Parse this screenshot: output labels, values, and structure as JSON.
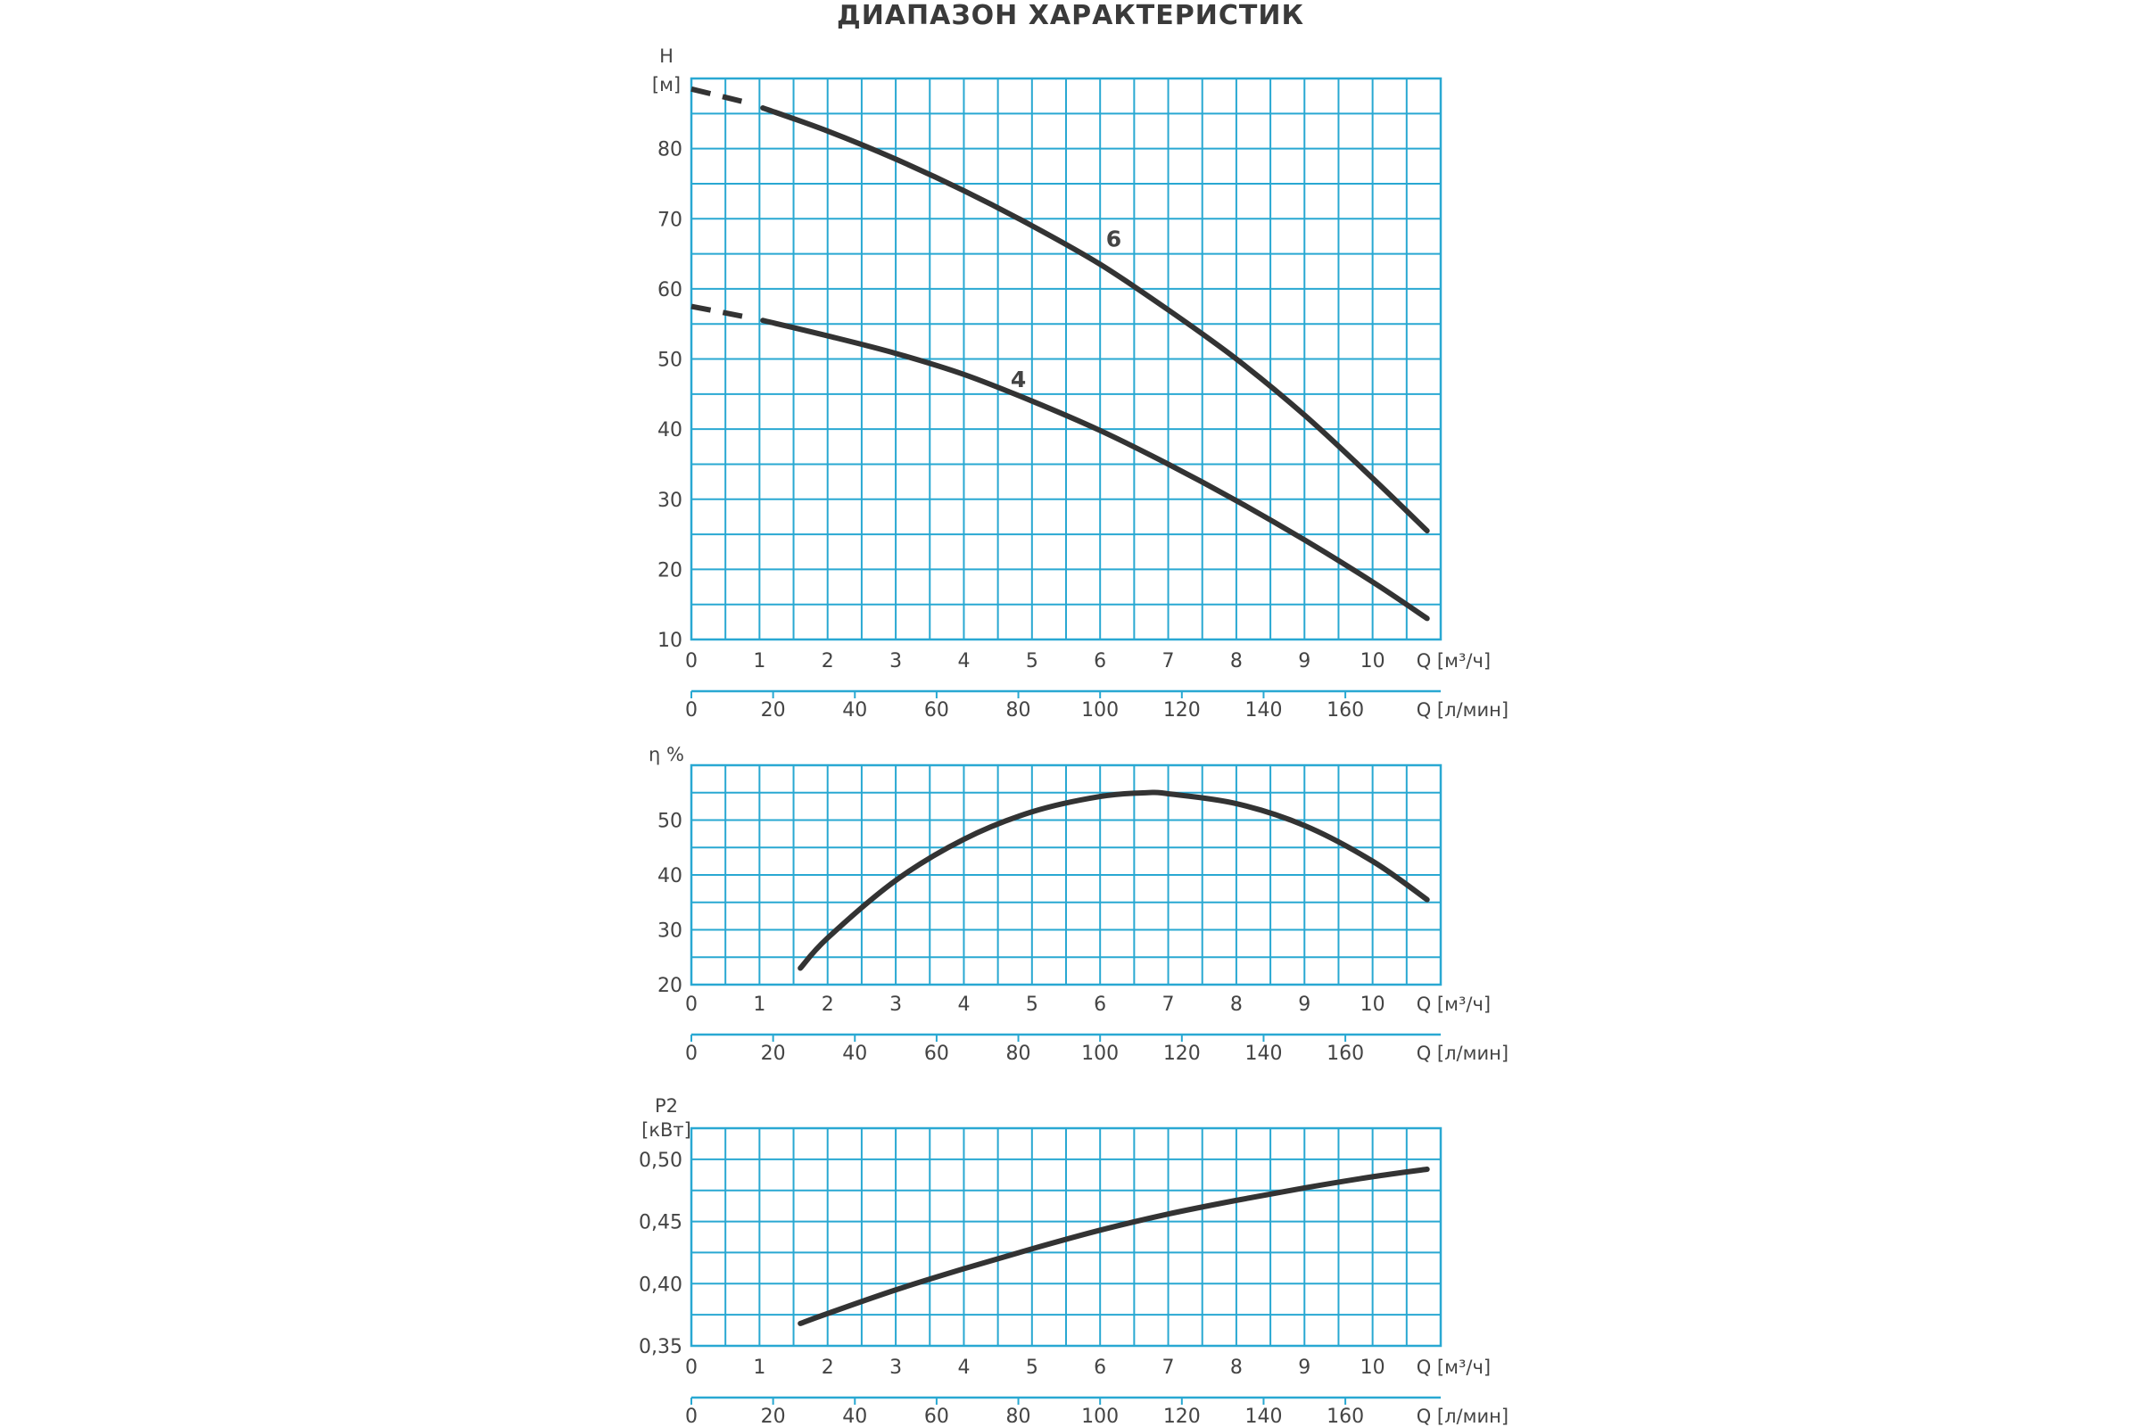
{
  "title": "ДИАПАЗОН ХАРАКТЕРИСТИК",
  "colors": {
    "grid": "#29a8d2",
    "curve": "#333333",
    "text": "#444444"
  },
  "chart_data": [
    {
      "type": "line",
      "ylabel_lines": [
        "H",
        "[м]"
      ],
      "y_ticks": [
        10,
        20,
        30,
        40,
        50,
        60,
        70,
        80
      ],
      "y_tick_labels": [
        "10",
        "20",
        "30",
        "40",
        "50",
        "60",
        "70",
        "80"
      ],
      "ylim": [
        10,
        90
      ],
      "xlim": [
        0,
        11
      ],
      "x_ticks": [
        0,
        1,
        2,
        3,
        4,
        5,
        6,
        7,
        8,
        9,
        10
      ],
      "x_tick_labels": [
        "0",
        "1",
        "2",
        "3",
        "4",
        "5",
        "6",
        "7",
        "8",
        "9",
        "10"
      ],
      "xlabel": "Q [м³/ч]",
      "x2_ticks": [
        0,
        20,
        40,
        60,
        80,
        100,
        120,
        140,
        160
      ],
      "x2_tick_labels": [
        "0",
        "20",
        "40",
        "60",
        "80",
        "100",
        "120",
        "140",
        "160"
      ],
      "x2label": "Q [л/мин]",
      "grid": true,
      "series": [
        {
          "name": "6",
          "label_at": [
            6.2,
            66
          ],
          "dashed": [
            [
              0,
              88.5
            ],
            [
              0.8,
              86.6
            ]
          ],
          "points": [
            [
              1.05,
              85.8
            ],
            [
              2,
              82.5
            ],
            [
              3,
              78.5
            ],
            [
              4,
              74
            ],
            [
              5,
              69
            ],
            [
              6,
              63.5
            ],
            [
              7,
              57
            ],
            [
              8,
              50
            ],
            [
              9,
              42
            ],
            [
              10,
              33
            ],
            [
              10.8,
              25.5
            ]
          ]
        },
        {
          "name": "4",
          "label_at": [
            4.8,
            46
          ],
          "dashed": [
            [
              0,
              57.5
            ],
            [
              0.8,
              56
            ]
          ],
          "points": [
            [
              1.05,
              55.5
            ],
            [
              2,
              53.3
            ],
            [
              3,
              50.8
            ],
            [
              4,
              47.8
            ],
            [
              5,
              44
            ],
            [
              6,
              39.8
            ],
            [
              7,
              35
            ],
            [
              8,
              29.8
            ],
            [
              9,
              24.2
            ],
            [
              10,
              18.2
            ],
            [
              10.8,
              13
            ]
          ]
        }
      ]
    },
    {
      "type": "line",
      "ylabel_lines": [
        "η %"
      ],
      "y_ticks": [
        20,
        30,
        40,
        50
      ],
      "y_tick_labels": [
        "20",
        "30",
        "40",
        "50"
      ],
      "ylim": [
        20,
        60
      ],
      "xlim": [
        0,
        11
      ],
      "x_ticks": [
        0,
        1,
        2,
        3,
        4,
        5,
        6,
        7,
        8,
        9,
        10
      ],
      "x_tick_labels": [
        "0",
        "1",
        "2",
        "3",
        "4",
        "5",
        "6",
        "7",
        "8",
        "9",
        "10"
      ],
      "xlabel": "Q [м³/ч]",
      "x2_ticks": [
        0,
        20,
        40,
        60,
        80,
        100,
        120,
        140,
        160
      ],
      "x2_tick_labels": [
        "0",
        "20",
        "40",
        "60",
        "80",
        "100",
        "120",
        "140",
        "160"
      ],
      "x2label": "Q [л/мин]",
      "grid": true,
      "series": [
        {
          "points": [
            [
              1.6,
              23
            ],
            [
              2,
              28.5
            ],
            [
              3,
              39
            ],
            [
              4,
              46.5
            ],
            [
              5,
              51.5
            ],
            [
              6,
              54.3
            ],
            [
              6.7,
              55
            ],
            [
              7,
              54.8
            ],
            [
              8,
              53
            ],
            [
              9,
              49
            ],
            [
              10,
              42.5
            ],
            [
              10.8,
              35.5
            ]
          ]
        }
      ]
    },
    {
      "type": "line",
      "ylabel_lines": [
        "P2",
        "[кВт]"
      ],
      "y_ticks": [
        0.35,
        0.4,
        0.45,
        0.5
      ],
      "y_tick_labels": [
        "0,35",
        "0,40",
        "0,45",
        "0,50"
      ],
      "ylim": [
        0.35,
        0.525
      ],
      "xlim": [
        0,
        11
      ],
      "x_ticks": [
        0,
        1,
        2,
        3,
        4,
        5,
        6,
        7,
        8,
        9,
        10
      ],
      "x_tick_labels": [
        "0",
        "1",
        "2",
        "3",
        "4",
        "5",
        "6",
        "7",
        "8",
        "9",
        "10"
      ],
      "xlabel": "Q [м³/ч]",
      "x2_ticks": [
        0,
        20,
        40,
        60,
        80,
        100,
        120,
        140,
        160
      ],
      "x2_tick_labels": [
        "0",
        "20",
        "40",
        "60",
        "80",
        "100",
        "120",
        "140",
        "160"
      ],
      "x2label": "Q [л/мин]",
      "grid": true,
      "series": [
        {
          "points": [
            [
              1.6,
              0.368
            ],
            [
              2,
              0.376
            ],
            [
              3,
              0.395
            ],
            [
              4,
              0.412
            ],
            [
              5,
              0.428
            ],
            [
              6,
              0.443
            ],
            [
              7,
              0.456
            ],
            [
              8,
              0.467
            ],
            [
              9,
              0.477
            ],
            [
              10,
              0.486
            ],
            [
              10.8,
              0.492
            ]
          ]
        }
      ]
    }
  ]
}
